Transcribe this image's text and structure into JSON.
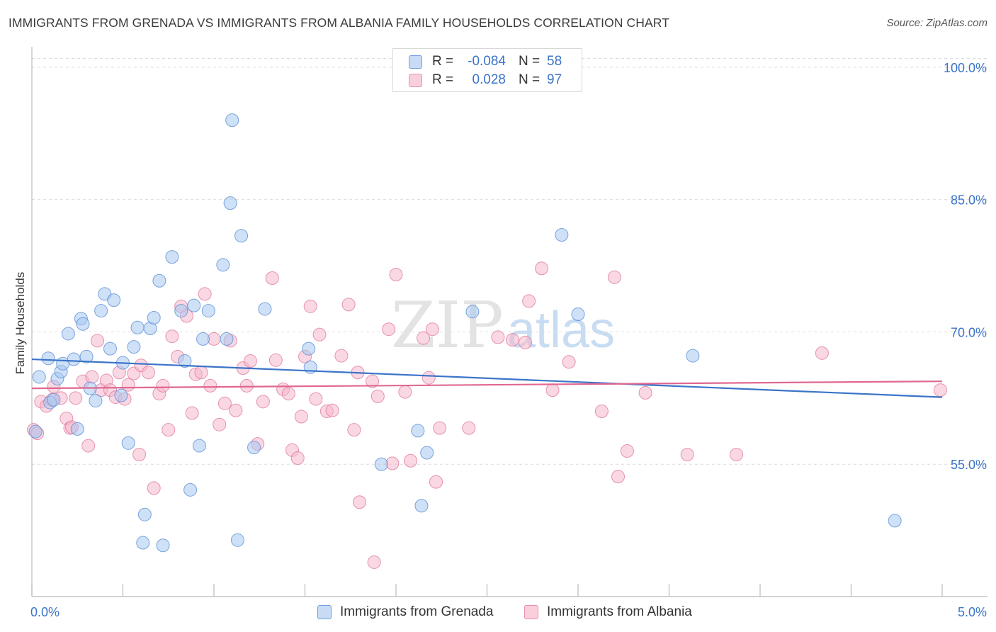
{
  "title": "IMMIGRANTS FROM GRENADA VS IMMIGRANTS FROM ALBANIA FAMILY HOUSEHOLDS CORRELATION CHART",
  "source": "Source: ZipAtlas.com",
  "watermark": {
    "zip": "ZIP",
    "atlas": "atlas"
  },
  "colors": {
    "blue": "#a8c8f0",
    "blue_stroke": "#5b8fd6",
    "blue_line": "#3b74c9",
    "pink": "#f5b8cc",
    "pink_stroke": "#e07a9c",
    "pink_line": "#e06890",
    "axis_text": "#3b74c9"
  },
  "legend": {
    "rows": [
      {
        "r_label": "R =",
        "r_value": "-0.084",
        "n_label": "N =",
        "n_value": "58",
        "series": "blue"
      },
      {
        "r_label": "R =",
        "r_value": "0.028",
        "n_label": "N =",
        "n_value": "97",
        "series": "pink"
      }
    ]
  },
  "bottom_legend": [
    {
      "label": "Immigrants from Grenada",
      "series": "blue"
    },
    {
      "label": "Immigrants from Albania",
      "series": "pink"
    }
  ],
  "chart_data": {
    "type": "scatter",
    "xlabel": "",
    "ylabel": "Family Households",
    "xlim": [
      0,
      5
    ],
    "ylim": [
      40,
      102
    ],
    "x_tick_labels": [
      {
        "value": 0,
        "label": "0.0%"
      },
      {
        "value": 5,
        "label": "5.0%"
      }
    ],
    "y_tick_labels": [
      {
        "value": 100,
        "label": "100.0%"
      },
      {
        "value": 85,
        "label": "85.0%"
      },
      {
        "value": 70,
        "label": "70.0%"
      },
      {
        "value": 55,
        "label": "55.0%"
      }
    ],
    "series": [
      {
        "name": "Immigrants from Grenada",
        "color": "blue",
        "trend": {
          "x": [
            0,
            5
          ],
          "y": [
            66.9,
            62.6
          ]
        },
        "points": [
          [
            0.04,
            64.9
          ],
          [
            0.09,
            67.0
          ],
          [
            0.1,
            62.0
          ],
          [
            0.12,
            62.3
          ],
          [
            0.14,
            64.7
          ],
          [
            0.16,
            65.5
          ],
          [
            0.17,
            66.4
          ],
          [
            0.2,
            69.8
          ],
          [
            0.23,
            66.9
          ],
          [
            0.25,
            59.0
          ],
          [
            0.27,
            71.5
          ],
          [
            0.28,
            70.9
          ],
          [
            0.3,
            67.2
          ],
          [
            0.32,
            63.6
          ],
          [
            0.35,
            62.2
          ],
          [
            0.38,
            72.4
          ],
          [
            0.4,
            74.3
          ],
          [
            0.43,
            68.1
          ],
          [
            0.45,
            73.6
          ],
          [
            0.49,
            62.8
          ],
          [
            0.5,
            66.5
          ],
          [
            0.53,
            57.4
          ],
          [
            0.56,
            68.3
          ],
          [
            0.58,
            70.5
          ],
          [
            0.61,
            46.1
          ],
          [
            0.62,
            49.3
          ],
          [
            0.65,
            70.4
          ],
          [
            0.67,
            71.6
          ],
          [
            0.7,
            75.8
          ],
          [
            0.72,
            45.8
          ],
          [
            0.77,
            78.5
          ],
          [
            0.82,
            72.4
          ],
          [
            0.84,
            66.7
          ],
          [
            0.87,
            52.1
          ],
          [
            0.89,
            73.0
          ],
          [
            0.92,
            57.1
          ],
          [
            0.94,
            69.2
          ],
          [
            0.97,
            72.4
          ],
          [
            1.05,
            77.6
          ],
          [
            1.07,
            69.2
          ],
          [
            1.09,
            84.6
          ],
          [
            1.1,
            94.0
          ],
          [
            1.13,
            46.4
          ],
          [
            1.15,
            80.9
          ],
          [
            1.22,
            56.9
          ],
          [
            1.28,
            72.6
          ],
          [
            1.52,
            68.1
          ],
          [
            1.53,
            66.0
          ],
          [
            1.92,
            55.0
          ],
          [
            2.12,
            58.8
          ],
          [
            2.14,
            50.3
          ],
          [
            2.17,
            56.3
          ],
          [
            2.42,
            72.3
          ],
          [
            2.91,
            81.0
          ],
          [
            3.0,
            72.0
          ],
          [
            3.63,
            67.3
          ],
          [
            4.74,
            48.6
          ],
          [
            0.02,
            58.7
          ]
        ]
      },
      {
        "name": "Immigrants from Albania",
        "color": "pink",
        "trend": {
          "x": [
            0,
            5
          ],
          "y": [
            63.6,
            64.4
          ]
        },
        "points": [
          [
            0.01,
            58.9
          ],
          [
            0.05,
            62.1
          ],
          [
            0.08,
            61.6
          ],
          [
            0.11,
            62.3
          ],
          [
            0.12,
            63.8
          ],
          [
            0.16,
            62.5
          ],
          [
            0.19,
            60.2
          ],
          [
            0.21,
            59.1
          ],
          [
            0.24,
            62.5
          ],
          [
            0.28,
            64.4
          ],
          [
            0.31,
            57.1
          ],
          [
            0.33,
            64.9
          ],
          [
            0.36,
            69.0
          ],
          [
            0.38,
            63.4
          ],
          [
            0.41,
            64.5
          ],
          [
            0.43,
            63.4
          ],
          [
            0.46,
            62.6
          ],
          [
            0.48,
            65.4
          ],
          [
            0.51,
            62.4
          ],
          [
            0.53,
            64.0
          ],
          [
            0.56,
            65.3
          ],
          [
            0.59,
            56.1
          ],
          [
            0.6,
            66.2
          ],
          [
            0.64,
            65.4
          ],
          [
            0.67,
            52.3
          ],
          [
            0.7,
            63.0
          ],
          [
            0.72,
            63.9
          ],
          [
            0.75,
            58.9
          ],
          [
            0.77,
            69.5
          ],
          [
            0.8,
            67.2
          ],
          [
            0.82,
            72.9
          ],
          [
            0.85,
            71.8
          ],
          [
            0.88,
            60.8
          ],
          [
            0.9,
            65.2
          ],
          [
            0.93,
            65.4
          ],
          [
            0.95,
            74.3
          ],
          [
            0.98,
            63.9
          ],
          [
            1.0,
            69.2
          ],
          [
            1.03,
            59.5
          ],
          [
            1.06,
            61.9
          ],
          [
            1.09,
            69.0
          ],
          [
            1.12,
            61.1
          ],
          [
            1.16,
            65.9
          ],
          [
            1.18,
            63.9
          ],
          [
            1.2,
            66.7
          ],
          [
            1.24,
            57.3
          ],
          [
            1.27,
            62.1
          ],
          [
            1.32,
            76.1
          ],
          [
            1.34,
            66.8
          ],
          [
            1.38,
            63.5
          ],
          [
            1.41,
            63.0
          ],
          [
            1.43,
            56.6
          ],
          [
            1.46,
            55.7
          ],
          [
            1.48,
            60.4
          ],
          [
            1.5,
            67.2
          ],
          [
            1.53,
            72.9
          ],
          [
            1.56,
            62.4
          ],
          [
            1.58,
            69.7
          ],
          [
            1.62,
            61.0
          ],
          [
            1.65,
            61.1
          ],
          [
            1.7,
            67.3
          ],
          [
            1.74,
            73.1
          ],
          [
            1.77,
            58.9
          ],
          [
            1.79,
            65.4
          ],
          [
            1.8,
            50.7
          ],
          [
            1.9,
            62.7
          ],
          [
            1.87,
            64.4
          ],
          [
            1.88,
            43.9
          ],
          [
            1.96,
            70.3
          ],
          [
            1.98,
            55.1
          ],
          [
            2.0,
            76.5
          ],
          [
            2.05,
            63.2
          ],
          [
            2.08,
            55.4
          ],
          [
            2.15,
            69.3
          ],
          [
            2.18,
            64.8
          ],
          [
            2.2,
            70.3
          ],
          [
            2.22,
            53.0
          ],
          [
            2.24,
            59.1
          ],
          [
            2.4,
            59.1
          ],
          [
            2.56,
            69.4
          ],
          [
            2.64,
            69.1
          ],
          [
            2.71,
            68.8
          ],
          [
            2.73,
            73.5
          ],
          [
            2.8,
            77.2
          ],
          [
            2.86,
            63.4
          ],
          [
            2.95,
            66.6
          ],
          [
            3.13,
            61.0
          ],
          [
            3.2,
            76.2
          ],
          [
            3.22,
            53.6
          ],
          [
            3.27,
            56.5
          ],
          [
            3.37,
            63.1
          ],
          [
            3.6,
            56.1
          ],
          [
            3.87,
            56.1
          ],
          [
            4.34,
            67.6
          ],
          [
            4.99,
            63.4
          ],
          [
            0.03,
            58.5
          ],
          [
            0.22,
            59.2
          ]
        ]
      }
    ]
  }
}
